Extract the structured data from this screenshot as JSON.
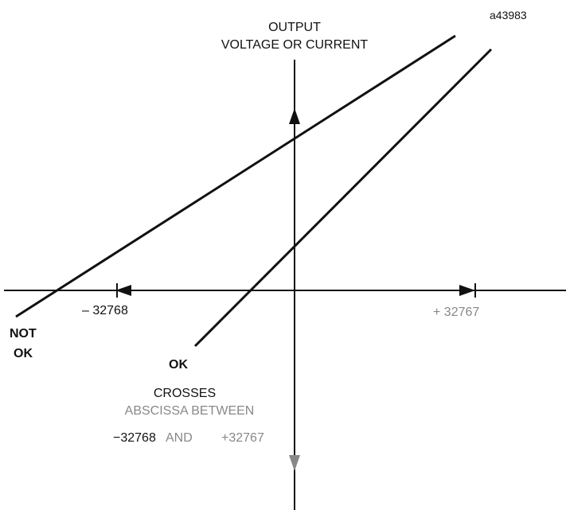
{
  "figure_id": "a43983",
  "y_axis": {
    "label_line1": "OUTPUT",
    "label_line2": "VOLTAGE OR CURRENT"
  },
  "x_axis": {
    "min_label": "– 32768",
    "max_label": "+ 32767"
  },
  "lines": [
    {
      "label_line1": "NOT",
      "label_line2": "OK"
    },
    {
      "label": "OK"
    }
  ],
  "note": {
    "line1": "CROSSES",
    "line2": "ABSCISSA BETWEEN",
    "from": "−32768",
    "and": "AND",
    "to": "+32767"
  }
}
